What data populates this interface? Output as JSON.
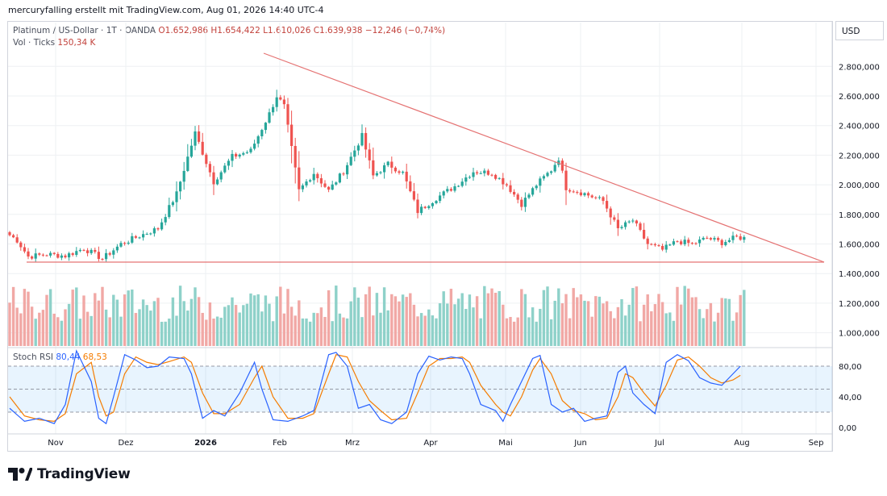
{
  "header": {
    "credit": "mercuryfalling erstellt mit TradingView.com, Aug 01, 2026 14:40 UTC-4"
  },
  "legend": {
    "symbol": "Platinum / US-Dollar · 1T · OANDA",
    "ohlc": "O1.652,986  H1.654,422  L1.610,026  C1.639,938  −12,246 (−0,74%)",
    "vol_label": "Vol · Ticks",
    "vol_value": "150,34 K",
    "stoch_label": "Stoch RSI",
    "stoch_k": "80,44",
    "stoch_d": "68,53"
  },
  "currency": "USD",
  "brand": "TradingView",
  "colors": {
    "up": "#26a69a",
    "down": "#ef5350",
    "vol_up": "#8ed1c9",
    "vol_down": "#f1a8a5",
    "trendline": "#e57373",
    "k": "#2962ff",
    "d": "#f57c00"
  },
  "chart_data": {
    "type": "candlestick",
    "y_axis": {
      "ticks": [
        "2.800,000",
        "2.600,000",
        "2.400,000",
        "2.200,000",
        "2.000,000",
        "1.800,000",
        "1.600,000",
        "1.400,000",
        "1.200,000",
        "1.000,000"
      ]
    },
    "x_axis": {
      "ticks": [
        "Nov",
        "Dez",
        "2026",
        "Feb",
        "Mrz",
        "Apr",
        "Mai",
        "Jun",
        "Jul",
        "Aug",
        "Sep"
      ]
    },
    "rsi_axis": {
      "ticks": [
        "80,00",
        "40,00",
        "0,00"
      ],
      "band": [
        20,
        80
      ]
    },
    "price_anchors": [
      [
        0,
        1660
      ],
      [
        2,
        1625
      ],
      [
        5,
        1515
      ],
      [
        10,
        1530
      ],
      [
        15,
        1520
      ],
      [
        20,
        1570
      ],
      [
        25,
        1500
      ],
      [
        30,
        1600
      ],
      [
        35,
        1655
      ],
      [
        40,
        1705
      ],
      [
        45,
        1940
      ],
      [
        50,
        2350
      ],
      [
        55,
        2020
      ],
      [
        60,
        2190
      ],
      [
        65,
        2230
      ],
      [
        70,
        2480
      ],
      [
        72,
        2600
      ],
      [
        74,
        2530
      ],
      [
        78,
        1960
      ],
      [
        82,
        2080
      ],
      [
        86,
        1960
      ],
      [
        90,
        2090
      ],
      [
        95,
        2330
      ],
      [
        98,
        2060
      ],
      [
        102,
        2140
      ],
      [
        106,
        2080
      ],
      [
        110,
        1820
      ],
      [
        115,
        1910
      ],
      [
        120,
        1990
      ],
      [
        125,
        2090
      ],
      [
        130,
        2080
      ],
      [
        134,
        2000
      ],
      [
        138,
        1870
      ],
      [
        142,
        2000
      ],
      [
        146,
        2100
      ],
      [
        148,
        2180
      ],
      [
        150,
        1980
      ],
      [
        155,
        1940
      ],
      [
        160,
        1890
      ],
      [
        164,
        1700
      ],
      [
        168,
        1760
      ],
      [
        172,
        1600
      ],
      [
        176,
        1560
      ],
      [
        180,
        1620
      ],
      [
        184,
        1600
      ],
      [
        188,
        1640
      ],
      [
        192,
        1610
      ],
      [
        196,
        1645
      ],
      [
        198,
        1640
      ]
    ],
    "stoch_rsi": {
      "k": [
        [
          0,
          25
        ],
        [
          4,
          8
        ],
        [
          8,
          12
        ],
        [
          12,
          5
        ],
        [
          15,
          30
        ],
        [
          18,
          100
        ],
        [
          22,
          60
        ],
        [
          24,
          12
        ],
        [
          26,
          5
        ],
        [
          28,
          40
        ],
        [
          31,
          95
        ],
        [
          34,
          88
        ],
        [
          37,
          78
        ],
        [
          40,
          80
        ],
        [
          43,
          92
        ],
        [
          47,
          90
        ],
        [
          49,
          70
        ],
        [
          52,
          12
        ],
        [
          55,
          22
        ],
        [
          58,
          15
        ],
        [
          62,
          45
        ],
        [
          66,
          85
        ],
        [
          68,
          50
        ],
        [
          71,
          10
        ],
        [
          75,
          8
        ],
        [
          79,
          15
        ],
        [
          82,
          22
        ],
        [
          86,
          95
        ],
        [
          88,
          98
        ],
        [
          91,
          80
        ],
        [
          94,
          25
        ],
        [
          97,
          30
        ],
        [
          100,
          10
        ],
        [
          103,
          5
        ],
        [
          107,
          20
        ],
        [
          110,
          70
        ],
        [
          113,
          93
        ],
        [
          116,
          88
        ],
        [
          119,
          92
        ],
        [
          122,
          90
        ],
        [
          124,
          70
        ],
        [
          127,
          30
        ],
        [
          131,
          22
        ],
        [
          133,
          8
        ],
        [
          135,
          30
        ],
        [
          138,
          60
        ],
        [
          141,
          90
        ],
        [
          143,
          94
        ],
        [
          146,
          30
        ],
        [
          149,
          20
        ],
        [
          152,
          25
        ],
        [
          155,
          8
        ],
        [
          158,
          12
        ],
        [
          161,
          15
        ],
        [
          164,
          72
        ],
        [
          166,
          80
        ],
        [
          168,
          45
        ],
        [
          171,
          30
        ],
        [
          174,
          18
        ],
        [
          177,
          85
        ],
        [
          180,
          95
        ],
        [
          183,
          87
        ],
        [
          186,
          65
        ],
        [
          189,
          58
        ],
        [
          192,
          55
        ],
        [
          195,
          70
        ],
        [
          197,
          80
        ]
      ],
      "d": [
        [
          0,
          40
        ],
        [
          4,
          15
        ],
        [
          8,
          10
        ],
        [
          12,
          8
        ],
        [
          15,
          18
        ],
        [
          18,
          70
        ],
        [
          22,
          85
        ],
        [
          24,
          40
        ],
        [
          26,
          15
        ],
        [
          28,
          20
        ],
        [
          31,
          70
        ],
        [
          34,
          92
        ],
        [
          37,
          85
        ],
        [
          40,
          82
        ],
        [
          43,
          86
        ],
        [
          47,
          92
        ],
        [
          49,
          85
        ],
        [
          52,
          45
        ],
        [
          55,
          18
        ],
        [
          58,
          18
        ],
        [
          62,
          30
        ],
        [
          66,
          65
        ],
        [
          68,
          80
        ],
        [
          71,
          40
        ],
        [
          75,
          12
        ],
        [
          79,
          12
        ],
        [
          82,
          18
        ],
        [
          86,
          70
        ],
        [
          88,
          95
        ],
        [
          91,
          92
        ],
        [
          94,
          60
        ],
        [
          97,
          35
        ],
        [
          100,
          22
        ],
        [
          103,
          10
        ],
        [
          107,
          12
        ],
        [
          110,
          45
        ],
        [
          113,
          80
        ],
        [
          116,
          90
        ],
        [
          119,
          90
        ],
        [
          122,
          92
        ],
        [
          124,
          85
        ],
        [
          127,
          55
        ],
        [
          131,
          30
        ],
        [
          133,
          20
        ],
        [
          135,
          15
        ],
        [
          138,
          40
        ],
        [
          141,
          75
        ],
        [
          143,
          90
        ],
        [
          146,
          70
        ],
        [
          149,
          35
        ],
        [
          152,
          22
        ],
        [
          155,
          18
        ],
        [
          158,
          10
        ],
        [
          161,
          12
        ],
        [
          164,
          40
        ],
        [
          166,
          70
        ],
        [
          168,
          65
        ],
        [
          171,
          45
        ],
        [
          174,
          28
        ],
        [
          177,
          55
        ],
        [
          180,
          88
        ],
        [
          183,
          92
        ],
        [
          186,
          80
        ],
        [
          189,
          65
        ],
        [
          192,
          58
        ],
        [
          195,
          62
        ],
        [
          197,
          68
        ]
      ]
    }
  }
}
